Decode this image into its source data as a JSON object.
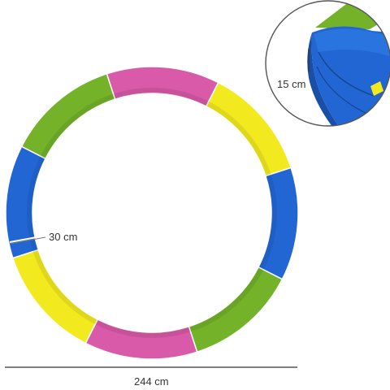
{
  "dimensions": {
    "diameter": "244 cm",
    "pad_width": "30 cm",
    "pad_thickness": "15 cm"
  },
  "colors": {
    "pink": "#d85aa8",
    "yellow": "#f2ea1e",
    "blue": "#2266d4",
    "green": "#74b22a",
    "line": "#333333"
  },
  "segments": [
    {
      "name": "pink",
      "color": "pink"
    },
    {
      "name": "yellow",
      "color": "yellow"
    },
    {
      "name": "blue",
      "color": "blue"
    },
    {
      "name": "green",
      "color": "green"
    },
    {
      "name": "pink",
      "color": "pink"
    },
    {
      "name": "yellow",
      "color": "yellow"
    },
    {
      "name": "blue",
      "color": "blue"
    },
    {
      "name": "green",
      "color": "green"
    }
  ]
}
